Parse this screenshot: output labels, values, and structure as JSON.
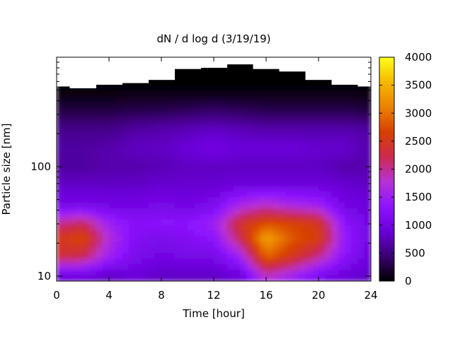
{
  "chart_data": {
    "type": "heatmap",
    "title": "dN / d log d (3/19/19)",
    "xlabel": "Time [hour]",
    "ylabel": "Particle size [nm]",
    "xlim": [
      0,
      24
    ],
    "ylim": [
      9,
      1000
    ],
    "y_scale": "log",
    "x_ticks": [
      0,
      4,
      8,
      12,
      16,
      20,
      24
    ],
    "x_tick_labels": [
      "0",
      "4",
      "8",
      "12",
      "16",
      "20",
      "24"
    ],
    "y_ticks": [
      10,
      100
    ],
    "y_tick_labels": [
      "10",
      "100"
    ],
    "colorbar": {
      "min": 0,
      "max": 4000,
      "ticks": [
        0,
        500,
        1000,
        1500,
        2000,
        2500,
        3000,
        3500,
        4000
      ],
      "tick_labels": [
        "0",
        "500",
        "1000",
        "1500",
        "2000",
        "2500",
        "3000",
        "3500",
        "4000"
      ],
      "palette": [
        "#000000",
        "#3a0072",
        "#6a00d8",
        "#8e14ff",
        "#b832d6",
        "#cc2a4e",
        "#d84000",
        "#ec8200",
        "#f5b800",
        "#ffff1a"
      ]
    },
    "background_color": "#ffffff",
    "grid": false,
    "size_bins_nm": [
      10,
      15,
      22,
      30,
      45,
      70,
      100,
      150,
      220,
      330,
      480,
      700
    ],
    "time_bins_hour": [
      0,
      2,
      4,
      6,
      8,
      10,
      12,
      14,
      16,
      18,
      20,
      22,
      24
    ],
    "concentration_by_size_bin": [
      [
        900,
        950,
        800,
        900,
        800,
        800,
        800,
        900,
        1800,
        1500,
        1100,
        900,
        800
      ],
      [
        2300,
        2200,
        1500,
        1100,
        1000,
        1050,
        1050,
        1500,
        2900,
        2500,
        2000,
        1300,
        900
      ],
      [
        2500,
        2700,
        1700,
        1200,
        1100,
        1200,
        1300,
        2200,
        3400,
        2800,
        2600,
        1400,
        1000
      ],
      [
        2000,
        2200,
        1500,
        1250,
        1300,
        1300,
        1500,
        2400,
        2800,
        2700,
        2500,
        1300,
        1000
      ],
      [
        1000,
        1050,
        1000,
        1000,
        1050,
        1000,
        1100,
        1600,
        1800,
        1600,
        1500,
        1000,
        900
      ],
      [
        800,
        800,
        800,
        800,
        850,
        850,
        850,
        900,
        900,
        900,
        900,
        850,
        800
      ],
      [
        650,
        650,
        700,
        700,
        750,
        800,
        800,
        800,
        800,
        800,
        800,
        700,
        700
      ],
      [
        650,
        650,
        700,
        800,
        800,
        900,
        1000,
        900,
        900,
        900,
        850,
        850,
        700
      ],
      [
        550,
        550,
        550,
        650,
        700,
        750,
        800,
        750,
        700,
        700,
        700,
        700,
        650
      ],
      [
        250,
        250,
        250,
        300,
        300,
        350,
        400,
        350,
        300,
        300,
        300,
        300,
        250
      ],
      [
        50,
        50,
        50,
        50,
        50,
        50,
        50,
        50,
        50,
        50,
        50,
        50,
        50
      ],
      [
        0,
        0,
        0,
        0,
        0,
        0,
        0,
        0,
        0,
        0,
        0,
        0,
        0
      ]
    ],
    "upper_size_limit_nm": [
      540,
      520,
      560,
      580,
      620,
      780,
      800,
      860,
      780,
      740,
      620,
      560,
      540
    ]
  }
}
